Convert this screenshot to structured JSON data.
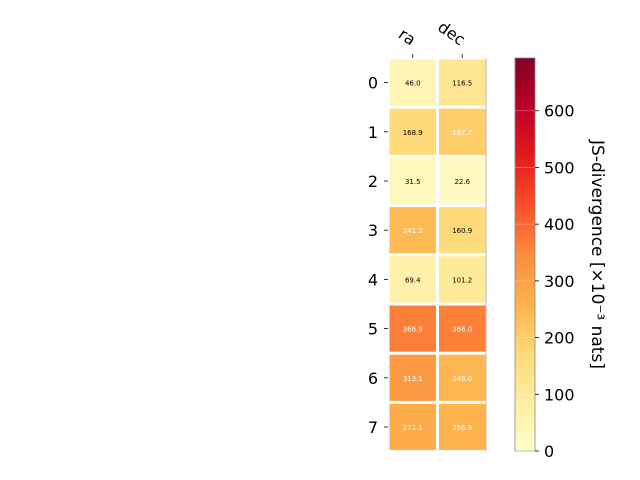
{
  "chart_data": {
    "type": "heatmap",
    "columns": [
      "ra",
      "dec"
    ],
    "rows": [
      "0",
      "1",
      "2",
      "3",
      "4",
      "5",
      "6",
      "7"
    ],
    "values": [
      [
        46.0,
        116.5
      ],
      [
        168.9,
        197.7
      ],
      [
        31.5,
        22.6
      ],
      [
        241.2,
        160.9
      ],
      [
        69.4,
        101.2
      ],
      [
        366.9,
        366.0
      ],
      [
        313.1,
        248.0
      ],
      [
        271.1,
        256.9
      ]
    ],
    "value_labels": [
      [
        "46.0",
        "116.5"
      ],
      [
        "168.9",
        "197.7"
      ],
      [
        "31.5",
        "22.6"
      ],
      [
        "241.2",
        "160.9"
      ],
      [
        "69.4",
        "101.2"
      ],
      [
        "366.9",
        "366.0"
      ],
      [
        "313.1",
        "248.0"
      ],
      [
        "271.1",
        "256.9"
      ]
    ],
    "colorbar": {
      "label": "JS-divergence [×10⁻³ nats]",
      "range": [
        0,
        693
      ],
      "ticks": [
        0,
        100,
        200,
        300,
        400,
        500,
        600
      ],
      "colormap": "YlOrRd"
    },
    "grid": false
  }
}
